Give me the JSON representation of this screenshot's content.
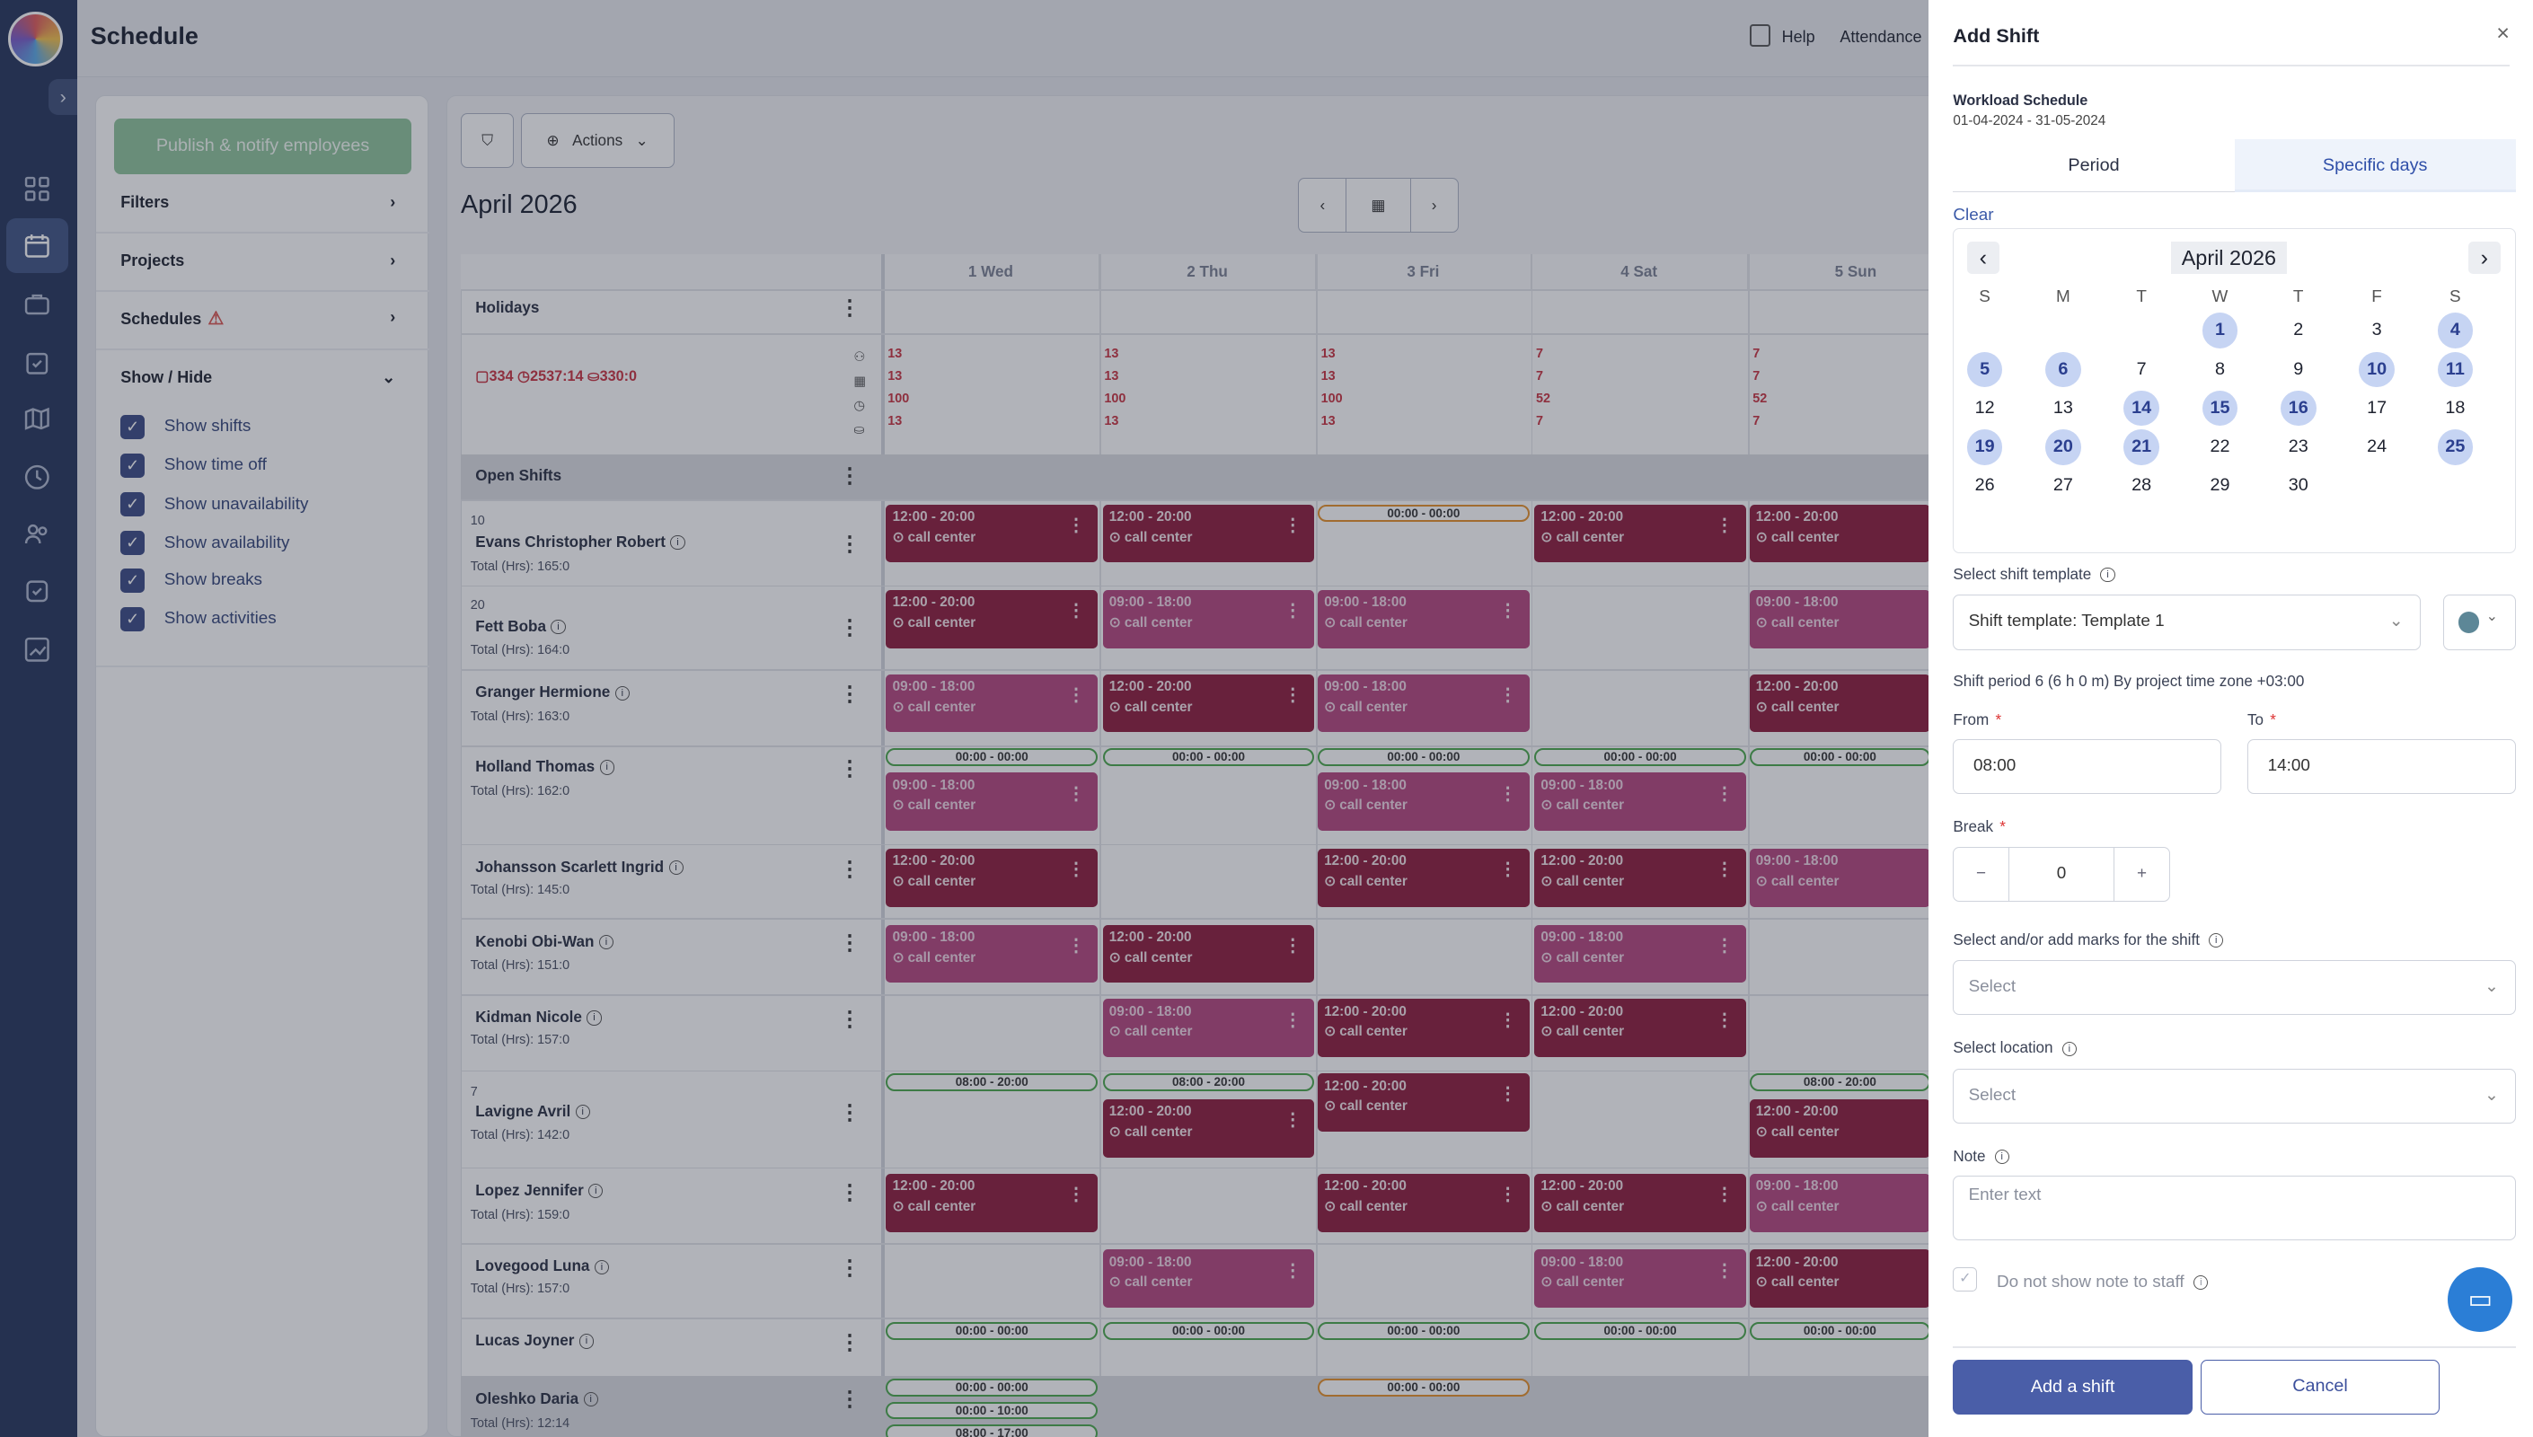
{
  "app": {
    "title": "Schedule",
    "help": "Help",
    "attendance": "Attendance"
  },
  "sidebar": {
    "items": [
      "grid-icon",
      "calendar-icon",
      "briefcase-icon",
      "clipboard-icon",
      "map-icon",
      "clock-icon",
      "users-icon",
      "badge-icon",
      "chart-icon"
    ]
  },
  "left": {
    "publish": "Publish & notify employees",
    "filters": "Filters",
    "projects": "Projects",
    "schedules": "Schedules",
    "showhide": "Show / Hide",
    "checks": [
      "Show shifts",
      "Show time off",
      "Show unavailability",
      "Show availability",
      "Show breaks",
      "Show activities"
    ]
  },
  "toolbar": {
    "actions": "Actions",
    "month": "April 2026"
  },
  "days": [
    "1 Wed",
    "2 Thu",
    "3 Fri",
    "4 Sat",
    "5 Sun"
  ],
  "holidays": "Holidays",
  "summary": {
    "people": "334",
    "hours": "2537:14",
    "cost": "330:0",
    "cols": [
      [
        "13",
        "13",
        "100",
        "13"
      ],
      [
        "13",
        "13",
        "100",
        "13"
      ],
      [
        "13",
        "13",
        "100",
        "13"
      ],
      [
        "7",
        "7",
        "52",
        "7"
      ],
      [
        "7",
        "7",
        "52",
        "7"
      ]
    ]
  },
  "open_shifts": "Open Shifts",
  "employees": [
    {
      "num": "10",
      "name": "Evans Christopher Robert",
      "total": "Total (Hrs): 165:0"
    },
    {
      "num": "20",
      "name": "Fett Boba",
      "total": "Total (Hrs): 164:0"
    },
    {
      "num": "",
      "name": "Granger Hermione",
      "total": "Total (Hrs): 163:0"
    },
    {
      "num": "",
      "name": "Holland Thomas",
      "total": "Total (Hrs): 162:0"
    },
    {
      "num": "",
      "name": "Johansson Scarlett Ingrid",
      "total": "Total (Hrs): 145:0"
    },
    {
      "num": "",
      "name": "Kenobi Obi-Wan",
      "total": "Total (Hrs): 151:0"
    },
    {
      "num": "",
      "name": "Kidman Nicole",
      "total": "Total (Hrs): 157:0"
    },
    {
      "num": "7",
      "name": "Lavigne Avril",
      "total": "Total (Hrs): 142:0"
    },
    {
      "num": "",
      "name": "Lopez Jennifer",
      "total": "Total (Hrs): 159:0"
    },
    {
      "num": "",
      "name": "Lovegood Luna",
      "total": "Total (Hrs): 157:0"
    },
    {
      "num": "",
      "name": "Lucas Joyner",
      "total": ""
    },
    {
      "num": "",
      "name": "Oleshko Daria",
      "total": "Total (Hrs): 12:14"
    }
  ],
  "shift_text": {
    "evening": "12:00 - 20:00",
    "day": "09:00 - 18:00",
    "location": "call center",
    "zero": "00:00 - 00:00",
    "long": "08:00 - 20:00",
    "morning": "00:00 - 10:00",
    "partial": "08:00 - 17:00"
  },
  "drawer": {
    "title": "Add Shift",
    "schedule_name": "Workload Schedule",
    "schedule_range": "01-04-2024 - 31-05-2024",
    "tab_period": "Period",
    "tab_specific": "Specific days",
    "clear": "Clear",
    "cal_month": "April 2026",
    "weekdays": [
      "S",
      "M",
      "T",
      "W",
      "T",
      "F",
      "S"
    ],
    "template_label": "Select shift template",
    "template_value": "Shift template: Template 1",
    "period_text": "Shift period 6 (6 h 0 m) By project time zone +03:00",
    "from_label": "From",
    "from_value": "08:00",
    "to_label": "To",
    "to_value": "14:00",
    "break_label": "Break",
    "break_value": "0",
    "marks_label": "Select and/or add marks for the shift",
    "marks_placeholder": "Select",
    "location_label": "Select location",
    "location_placeholder": "Select",
    "note_label": "Note",
    "note_placeholder": "Enter text",
    "dont_show": "Do not show note to staff",
    "add_button": "Add a shift",
    "cancel_button": "Cancel",
    "accent": "#4a5ea8",
    "selected_day_color": "#c6d4f3"
  }
}
